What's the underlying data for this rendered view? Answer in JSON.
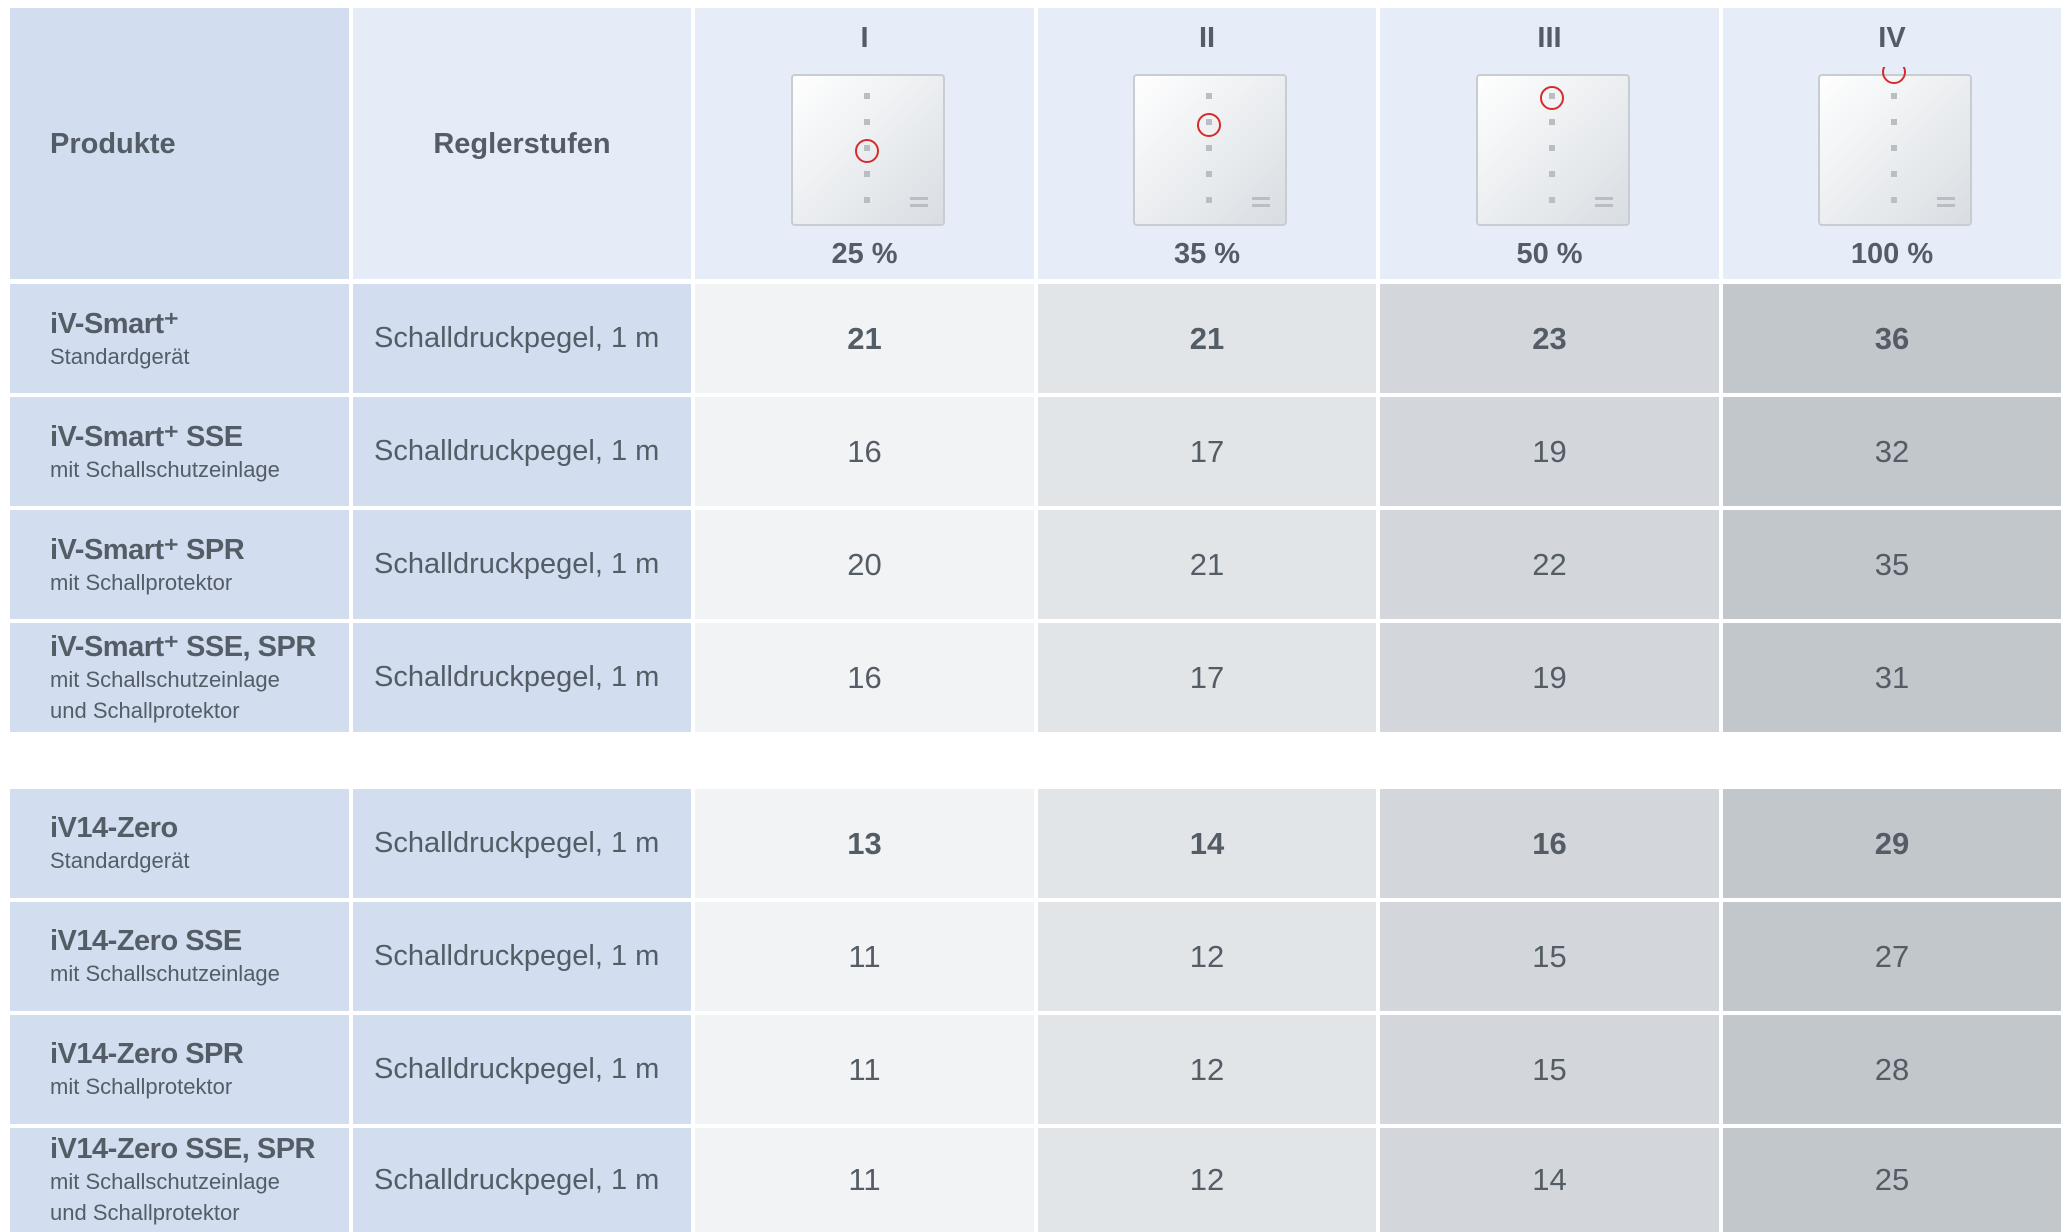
{
  "header": {
    "products": "Produkte",
    "levels": "Reglerstufen"
  },
  "columns": [
    {
      "label": "I",
      "percent": "25 %"
    },
    {
      "label": "II",
      "percent": "35 %"
    },
    {
      "label": "III",
      "percent": "50 %"
    },
    {
      "label": "IV",
      "percent": "100 %"
    }
  ],
  "groups": [
    {
      "rows": [
        {
          "name": "iV-Smart⁺",
          "sub": [
            "Standardgerät"
          ],
          "measure": "Schalldruckpegel, 1 m",
          "values": [
            21,
            21,
            23,
            36
          ]
        },
        {
          "name": "iV-Smart⁺ SSE",
          "sub": [
            "mit Schallschutzeinlage"
          ],
          "measure": "Schalldruckpegel, 1 m",
          "values": [
            16,
            17,
            19,
            32
          ]
        },
        {
          "name": "iV-Smart⁺ SPR",
          "sub": [
            "mit Schallprotektor"
          ],
          "measure": "Schalldruckpegel, 1 m",
          "values": [
            20,
            21,
            22,
            35
          ]
        },
        {
          "name": "iV-Smart⁺ SSE, SPR",
          "sub": [
            "mit Schallschutzeinlage",
            "und Schallprotektor"
          ],
          "measure": "Schalldruckpegel, 1 m",
          "values": [
            16,
            17,
            19,
            31
          ]
        }
      ]
    },
    {
      "rows": [
        {
          "name": "iV14-Zero",
          "sub": [
            "Standardgerät"
          ],
          "measure": "Schalldruckpegel, 1 m",
          "values": [
            13,
            14,
            16,
            29
          ]
        },
        {
          "name": "iV14-Zero SSE",
          "sub": [
            "mit Schallschutzeinlage"
          ],
          "measure": "Schalldruckpegel, 1 m",
          "values": [
            11,
            12,
            15,
            27
          ]
        },
        {
          "name": "iV14-Zero SPR",
          "sub": [
            "mit Schallprotektor"
          ],
          "measure": "Schalldruckpegel, 1 m",
          "values": [
            11,
            12,
            15,
            28
          ]
        },
        {
          "name": "iV14-Zero SSE, SPR",
          "sub": [
            "mit Schallschutzeinlage",
            "und Schallprotektor"
          ],
          "measure": "Schalldruckpegel, 1 m",
          "values": [
            11,
            12,
            14,
            25
          ]
        }
      ]
    }
  ]
}
